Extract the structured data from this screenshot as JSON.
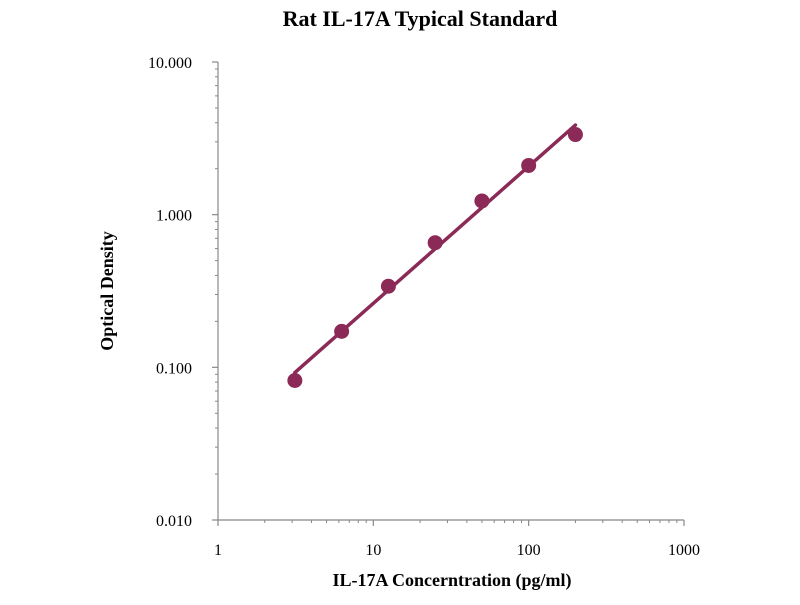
{
  "chart_data": {
    "type": "scatter",
    "title": "Rat IL-17A Typical Standard",
    "xlabel": "IL-17A Concerntration (pg/ml)",
    "ylabel": "Optical Density",
    "x_scale": "log",
    "y_scale": "log",
    "xlim": [
      1,
      1000
    ],
    "ylim": [
      0.01,
      10
    ],
    "x_ticks": [
      1,
      10,
      100,
      1000
    ],
    "x_tick_labels": [
      "1",
      "10",
      "100",
      "1000"
    ],
    "y_ticks": [
      0.01,
      0.1,
      1,
      10
    ],
    "y_tick_labels": [
      "0.010",
      "0.100",
      "1.000",
      "10.000"
    ],
    "grid": false,
    "legend": "none",
    "series": [
      {
        "x": [
          3.125,
          6.25,
          12.5,
          25,
          50,
          100,
          200
        ],
        "y": [
          0.082,
          0.172,
          0.34,
          0.655,
          1.23,
          2.1,
          3.35
        ],
        "marker": "circle",
        "trendline": "power",
        "color": "#8B2A57"
      }
    ]
  }
}
